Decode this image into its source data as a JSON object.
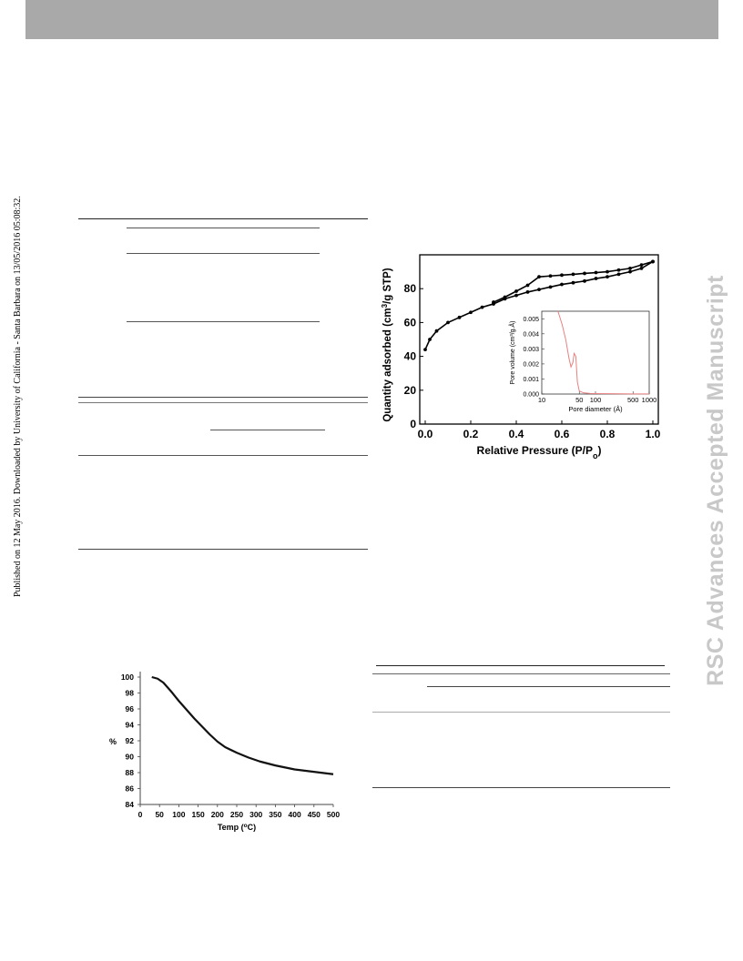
{
  "header": {
    "bar_color": "#a9a9a9"
  },
  "side_note": "Published on 12 May 2016. Downloaded by University of California - Santa Barbara on 13/05/2016 05:08:32.",
  "watermark": "RSC Advances Accepted Manuscript",
  "isotherm_figure": {
    "chart_data": {
      "type": "line",
      "xlabel": "Relative Pressure (P/P",
      "xlabel_sub": "o",
      "xlabel_end": ")",
      "ylabel": "Quantity adsorbed (cm",
      "ylabel_sup": "3",
      "ylabel_end": "/g STP)",
      "xlim": [
        0.0,
        1.0
      ],
      "ylim": [
        0,
        100
      ],
      "xticks": [
        "0.0",
        "0.2",
        "0.4",
        "0.6",
        "0.8",
        "1.0"
      ],
      "yticks": [
        "0",
        "20",
        "40",
        "60",
        "80"
      ],
      "series": [
        {
          "x": [
            0.0,
            0.02,
            0.05,
            0.1,
            0.15,
            0.2,
            0.25,
            0.3,
            0.35,
            0.4,
            0.45,
            0.5,
            0.55,
            0.6,
            0.65,
            0.7,
            0.75,
            0.8,
            0.85,
            0.9,
            0.95,
            1.0
          ],
          "y": [
            44,
            50,
            55,
            60,
            63,
            66,
            69,
            71,
            74,
            76,
            78,
            79.5,
            81,
            82.5,
            83.5,
            84.5,
            86,
            87,
            88.5,
            90,
            92,
            96
          ]
        },
        {
          "x": [
            1.0,
            0.95,
            0.9,
            0.85,
            0.8,
            0.75,
            0.7,
            0.65,
            0.6,
            0.55,
            0.5,
            0.45,
            0.4,
            0.35,
            0.3
          ],
          "y": [
            96,
            94,
            92,
            91,
            90,
            89.5,
            89,
            88.5,
            88,
            87.5,
            87,
            82,
            78.5,
            75,
            72
          ]
        }
      ],
      "inset": {
        "type": "line",
        "xlabel": "Pore diameter (Å)",
        "ylabel": "Pore volume (cm³/g.Å)",
        "x_scale": "log",
        "xlim": [
          10,
          1000
        ],
        "ylim": [
          0,
          0.0055
        ],
        "xticks": [
          "10",
          "50",
          "100",
          "500",
          "1000"
        ],
        "yticks": [
          "0.000",
          "0.001",
          "0.002",
          "0.003",
          "0.004",
          "0.005"
        ],
        "series_color": "#e88080",
        "x": [
          20,
          24,
          28,
          32,
          35,
          38,
          40,
          43,
          46,
          50,
          60,
          80,
          100,
          200,
          500,
          1000
        ],
        "y": [
          0.0055,
          0.0046,
          0.0036,
          0.0024,
          0.0018,
          0.0021,
          0.0027,
          0.0025,
          0.0008,
          0.0002,
          8e-05,
          4e-05,
          3e-05,
          2e-05,
          1e-05,
          1e-05
        ]
      }
    }
  },
  "tga_figure": {
    "chart_data": {
      "type": "line",
      "xlabel": "Temp (",
      "xlabel_sup": "o",
      "xlabel_end": "C)",
      "ylabel": "%",
      "xlim": [
        0,
        500
      ],
      "ylim": [
        84,
        100
      ],
      "xticks": [
        "0",
        "50",
        "100",
        "150",
        "200",
        "250",
        "300",
        "350",
        "400",
        "450",
        "500"
      ],
      "yticks": [
        "84",
        "86",
        "88",
        "90",
        "92",
        "94",
        "96",
        "98",
        "100"
      ],
      "x": [
        30,
        45,
        60,
        80,
        100,
        120,
        140,
        160,
        180,
        200,
        220,
        250,
        280,
        310,
        350,
        400,
        450,
        500
      ],
      "y": [
        100,
        99.8,
        99.3,
        98.2,
        97.0,
        95.9,
        94.8,
        93.8,
        92.8,
        91.9,
        91.2,
        90.5,
        89.9,
        89.4,
        88.9,
        88.4,
        88.1,
        87.8
      ]
    }
  }
}
